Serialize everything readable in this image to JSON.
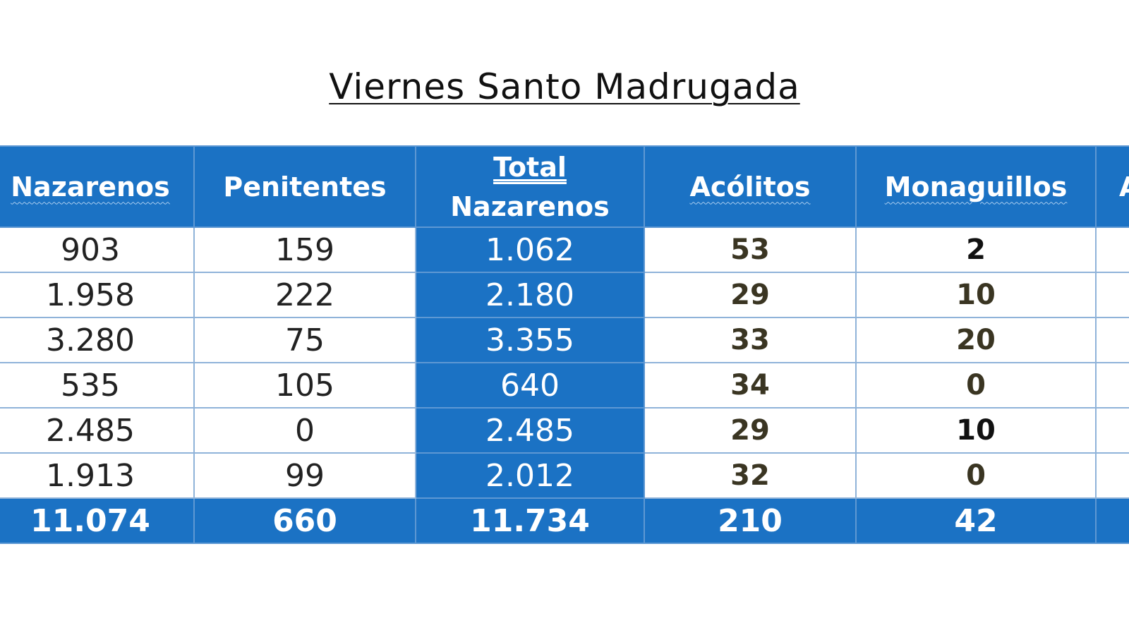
{
  "title": "Viernes Santo Madrugada",
  "colors": {
    "header_bg": "#1b72c4",
    "grid_line": "#8fb3d9",
    "text_dark": "#222222"
  },
  "table": {
    "headers": {
      "nazarenos": "Nazarenos",
      "penitentes": "Penitentes",
      "total_line1": "Total",
      "total_line2": "Nazarenos",
      "acolitos": "Acólitos",
      "monaguillos": "Monaguillos",
      "cut_off_char": "A"
    },
    "rows": [
      {
        "nazarenos": "903",
        "penitentes": "159",
        "total": "1.062",
        "acolitos": "53",
        "monaguillos": "2"
      },
      {
        "nazarenos": "1.958",
        "penitentes": "222",
        "total": "2.180",
        "acolitos": "29",
        "monaguillos": "10"
      },
      {
        "nazarenos": "3.280",
        "penitentes": "75",
        "total": "3.355",
        "acolitos": "33",
        "monaguillos": "20"
      },
      {
        "nazarenos": "535",
        "penitentes": "105",
        "total": "640",
        "acolitos": "34",
        "monaguillos": "0"
      },
      {
        "nazarenos": "2.485",
        "penitentes": "0",
        "total": "2.485",
        "acolitos": "29",
        "monaguillos": "10"
      },
      {
        "nazarenos": "1.913",
        "penitentes": "99",
        "total": "2.012",
        "acolitos": "32",
        "monaguillos": "0"
      }
    ],
    "totals": {
      "nazarenos": "11.074",
      "penitentes": "660",
      "total": "11.734",
      "acolitos": "210",
      "monaguillos": "42"
    }
  }
}
